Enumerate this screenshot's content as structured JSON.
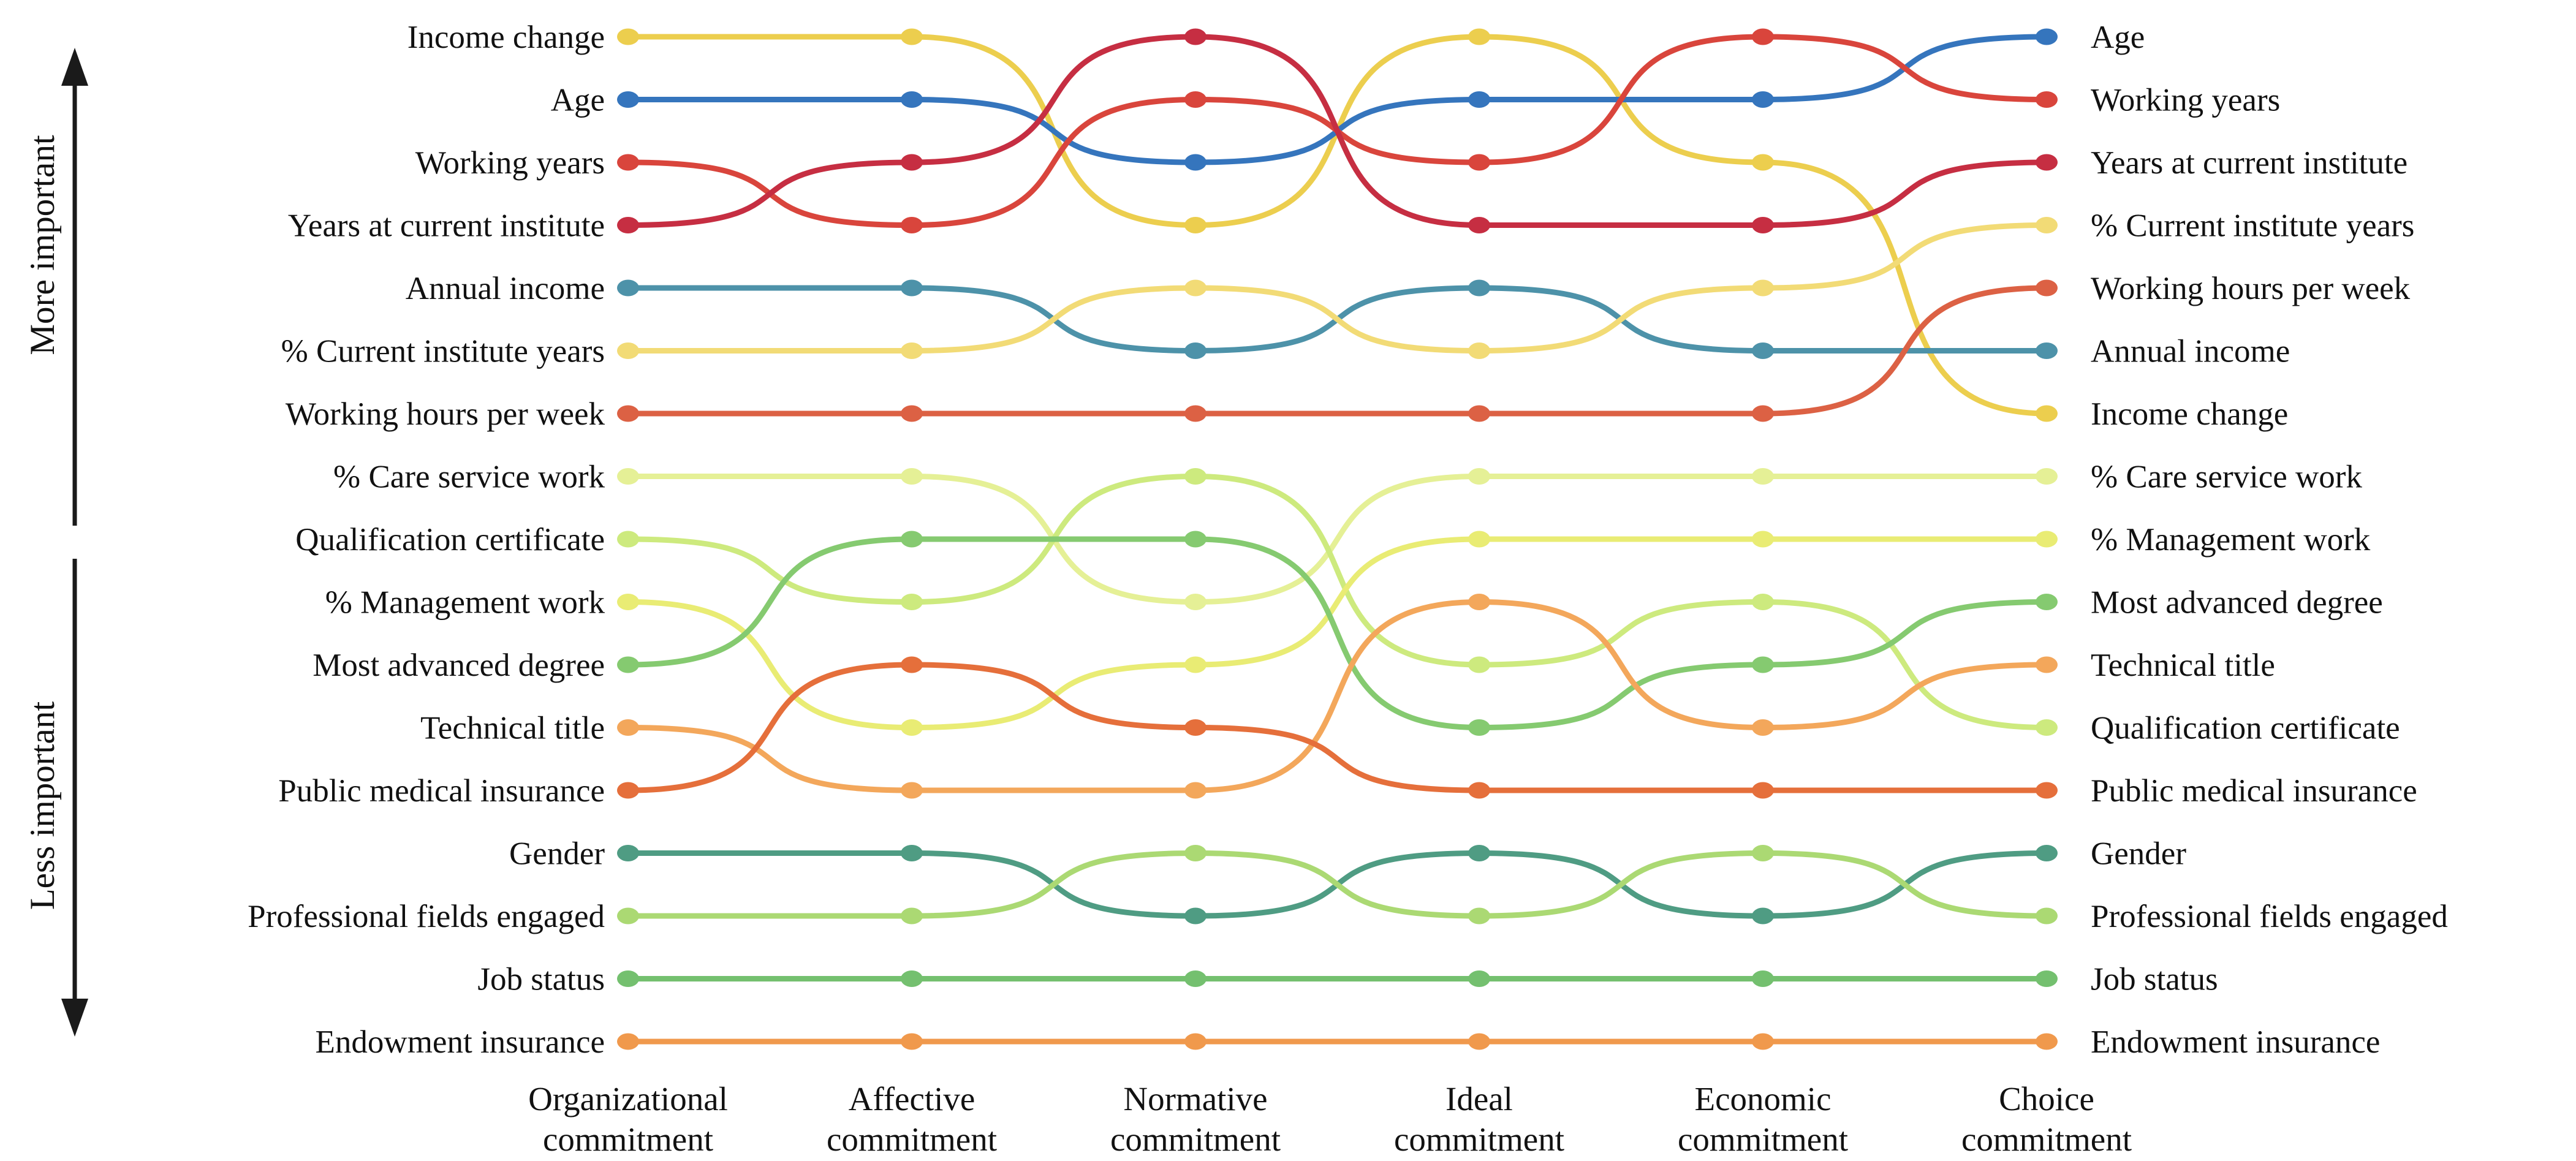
{
  "y_axis": {
    "top_label": "More important",
    "bottom_label": "Less important"
  },
  "chart_data": {
    "type": "line",
    "subtype": "bump-ranking",
    "note": "rank 1 = top (most important); left labels show ranking at first column, right labels at last column",
    "columns": [
      "Organizational commitment",
      "Affective commitment",
      "Normative commitment",
      "Ideal commitment",
      "Economic commitment",
      "Choice commitment"
    ],
    "series": [
      {
        "name": "Income change",
        "color": "#ecce4e",
        "ranks": [
          1,
          1,
          4,
          1,
          3,
          7
        ]
      },
      {
        "name": "Age",
        "color": "#3575bd",
        "ranks": [
          2,
          2,
          3,
          2,
          2,
          1
        ]
      },
      {
        "name": "Working years",
        "color": "#d9453c",
        "ranks": [
          3,
          4,
          2,
          3,
          1,
          2
        ]
      },
      {
        "name": "Years at current institute",
        "color": "#c62e42",
        "ranks": [
          4,
          3,
          1,
          4,
          4,
          3
        ]
      },
      {
        "name": "Annual income",
        "color": "#4d92a9",
        "ranks": [
          5,
          5,
          6,
          5,
          6,
          6
        ]
      },
      {
        "name": "% Current institute years",
        "color": "#f2db76",
        "ranks": [
          6,
          6,
          5,
          6,
          5,
          4
        ]
      },
      {
        "name": "Working hours per week",
        "color": "#dc6144",
        "ranks": [
          7,
          7,
          7,
          7,
          7,
          5
        ]
      },
      {
        "name": "% Care service work",
        "color": "#e5f096",
        "ranks": [
          8,
          8,
          10,
          8,
          8,
          8
        ]
      },
      {
        "name": "Qualification certificate",
        "color": "#cdea7e",
        "ranks": [
          9,
          10,
          8,
          11,
          10,
          12
        ]
      },
      {
        "name": "% Management work",
        "color": "#e9ec74",
        "ranks": [
          10,
          12,
          11,
          9,
          9,
          9
        ]
      },
      {
        "name": "Most advanced degree",
        "color": "#85ca70",
        "ranks": [
          11,
          9,
          9,
          12,
          11,
          10
        ]
      },
      {
        "name": "Technical title",
        "color": "#f3a75b",
        "ranks": [
          12,
          13,
          13,
          10,
          12,
          11
        ]
      },
      {
        "name": "Public medical insurance",
        "color": "#e56f3b",
        "ranks": [
          13,
          11,
          12,
          13,
          13,
          13
        ]
      },
      {
        "name": "Gender",
        "color": "#4f9c83",
        "ranks": [
          14,
          14,
          15,
          14,
          15,
          14
        ]
      },
      {
        "name": "Professional fields engaged",
        "color": "#abd973",
        "ranks": [
          15,
          15,
          14,
          15,
          14,
          15
        ]
      },
      {
        "name": "Job status",
        "color": "#74c06f",
        "ranks": [
          16,
          16,
          16,
          16,
          16,
          16
        ]
      },
      {
        "name": "Endowment insurance",
        "color": "#f0994c",
        "ranks": [
          17,
          17,
          17,
          17,
          17,
          17
        ]
      }
    ],
    "layout_hints": {
      "legend": "none",
      "grid": "off",
      "left_labels_order_top_to_bottom": [
        "Income change",
        "Age",
        "Working years",
        "Years at current institute",
        "Annual income",
        "% Current institute years",
        "Working hours per week",
        "% Care service work",
        "Qualification certificate",
        "% Management work",
        "Most advanced degree",
        "Technical title",
        "Public medical insurance",
        "Gender",
        "Professional fields engaged",
        "Job status",
        "Endowment insurance"
      ],
      "right_labels_order_top_to_bottom": [
        "Age",
        "Working years",
        "Years at current institute",
        "% Current institute years",
        "Working hours per week",
        "Annual income",
        "Income change",
        "% Care service work",
        "% Management work",
        "Most advanced degree",
        "Technical title",
        "Qualification certificate",
        "Public medical insurance",
        "Gender",
        "Professional fields engaged",
        "Job status",
        "Endowment insurance"
      ]
    }
  }
}
